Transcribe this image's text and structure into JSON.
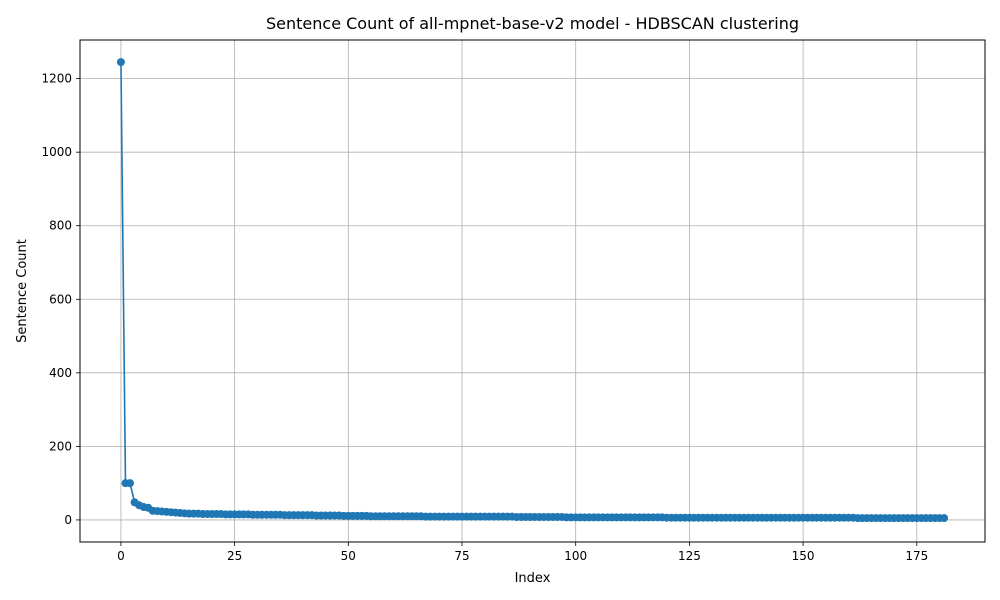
{
  "chart_data": {
    "type": "line",
    "title": "Sentence Count of all-mpnet-base-v2 model - HDBSCAN clustering",
    "xlabel": "Index",
    "ylabel": "Sentence Count",
    "xlim": [
      -9,
      190
    ],
    "ylim": [
      -60,
      1305
    ],
    "xticks": [
      0,
      25,
      50,
      75,
      100,
      125,
      150,
      175
    ],
    "yticks": [
      0,
      200,
      400,
      600,
      800,
      1000,
      1200
    ],
    "grid": true,
    "marker": "circle",
    "color": "#1f77b4",
    "series": [
      {
        "x": [
          0,
          1,
          2,
          3,
          4,
          5,
          6,
          7,
          8,
          9,
          10,
          11,
          12,
          13,
          14,
          15,
          16,
          17,
          18,
          19,
          20,
          21,
          22,
          23,
          24,
          25,
          26,
          27,
          28,
          29,
          30,
          31,
          32,
          33,
          34,
          35,
          36,
          37,
          38,
          39,
          40,
          41,
          42,
          43,
          44,
          45,
          46,
          47,
          48,
          49,
          50,
          51,
          52,
          53,
          54,
          55,
          56,
          57,
          58,
          59,
          60,
          61,
          62,
          63,
          64,
          65,
          66,
          67,
          68,
          69,
          70,
          71,
          72,
          73,
          74,
          75,
          76,
          77,
          78,
          79,
          80,
          81,
          82,
          83,
          84,
          85,
          86,
          87,
          88,
          89,
          90,
          91,
          92,
          93,
          94,
          95,
          96,
          97,
          98,
          99,
          100,
          101,
          102,
          103,
          104,
          105,
          106,
          107,
          108,
          109,
          110,
          111,
          112,
          113,
          114,
          115,
          116,
          117,
          118,
          119,
          120,
          121,
          122,
          123,
          124,
          125,
          126,
          127,
          128,
          129,
          130,
          131,
          132,
          133,
          134,
          135,
          136,
          137,
          138,
          139,
          140,
          141,
          142,
          143,
          144,
          145,
          146,
          147,
          148,
          149,
          150,
          151,
          152,
          153,
          154,
          155,
          156,
          157,
          158,
          159,
          160,
          161,
          162,
          163,
          164,
          165,
          166,
          167,
          168,
          169,
          170,
          171,
          172,
          173,
          174,
          175,
          176,
          177,
          178,
          179,
          180,
          181
        ],
        "values": [
          1245,
          100,
          100,
          48,
          40,
          35,
          33,
          25,
          24,
          23,
          22,
          21,
          20,
          19,
          18,
          17,
          17,
          17,
          16,
          16,
          16,
          16,
          16,
          15,
          15,
          15,
          15,
          15,
          15,
          14,
          14,
          14,
          14,
          14,
          14,
          14,
          13,
          13,
          13,
          13,
          13,
          13,
          13,
          12,
          12,
          12,
          12,
          12,
          12,
          11,
          11,
          11,
          11,
          11,
          11,
          10,
          10,
          10,
          10,
          10,
          10,
          10,
          10,
          10,
          10,
          10,
          10,
          9,
          9,
          9,
          9,
          9,
          9,
          9,
          9,
          9,
          9,
          9,
          9,
          9,
          9,
          9,
          9,
          9,
          9,
          9,
          9,
          8,
          8,
          8,
          8,
          8,
          8,
          8,
          8,
          8,
          8,
          8,
          7,
          7,
          7,
          7,
          7,
          7,
          7,
          7,
          7,
          7,
          7,
          7,
          7,
          7,
          7,
          7,
          7,
          7,
          7,
          7,
          7,
          7,
          6,
          6,
          6,
          6,
          6,
          6,
          6,
          6,
          6,
          6,
          6,
          6,
          6,
          6,
          6,
          6,
          6,
          6,
          6,
          6,
          6,
          6,
          6,
          6,
          6,
          6,
          6,
          6,
          6,
          6,
          6,
          6,
          6,
          6,
          6,
          6,
          6,
          6,
          6,
          6,
          6,
          6,
          5,
          5,
          5,
          5,
          5,
          5,
          5,
          5,
          5,
          5,
          5,
          5,
          5,
          5,
          5,
          5,
          5,
          5,
          5,
          5
        ]
      }
    ]
  }
}
